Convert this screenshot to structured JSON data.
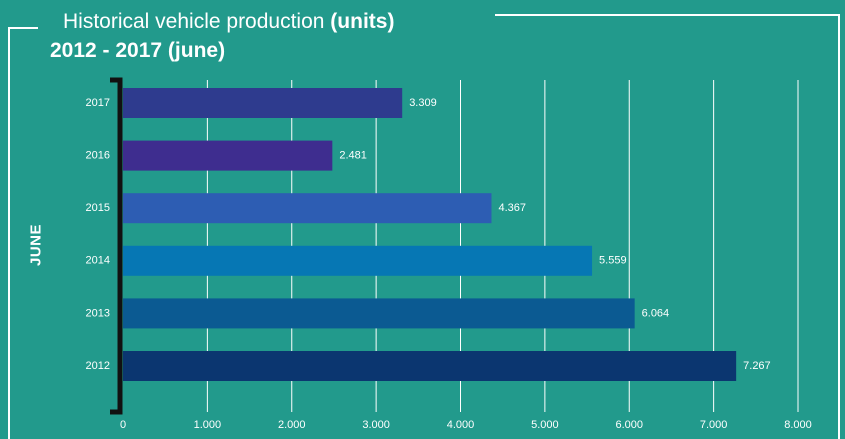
{
  "header": {
    "title_main": "Historical vehicle production ",
    "title_bold": "(units)",
    "subtitle": "2012 - 2017 (june)"
  },
  "y_group_label": "JUNE",
  "colors": {
    "background": "#229a8c",
    "frame": "#ffffff",
    "gridline": "#ffffff",
    "text": "#ffffff"
  },
  "chart_data": {
    "type": "bar",
    "orientation": "horizontal",
    "title": "Historical vehicle production (units)",
    "subtitle": "2012 - 2017 (june)",
    "ylabel": "JUNE",
    "categories": [
      "2017",
      "2016",
      "2015",
      "2014",
      "2013",
      "2012"
    ],
    "values": [
      3309,
      2481,
      4367,
      5559,
      6064,
      7267
    ],
    "value_labels": [
      "3.309",
      "2.481",
      "4.367",
      "5.559",
      "6.064",
      "7.267"
    ],
    "bar_colors": [
      "#2e3b8e",
      "#3e2d8f",
      "#2d5db3",
      "#0677b4",
      "#0b5a92",
      "#0b3670"
    ],
    "xlim": [
      0,
      8000
    ],
    "xticks": [
      0,
      1000,
      2000,
      3000,
      4000,
      5000,
      6000,
      7000,
      8000
    ],
    "xtick_labels": [
      "0",
      "1.000",
      "2.000",
      "3.000",
      "4.000",
      "5.000",
      "6.000",
      "7.000",
      "8.000"
    ],
    "grid": true,
    "legend": "none"
  }
}
